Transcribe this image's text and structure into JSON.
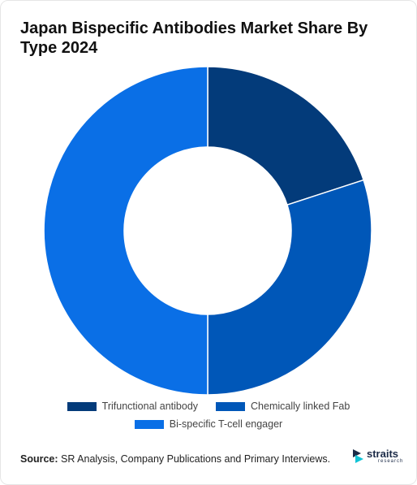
{
  "title": "Japan Bispecific Antibodies Market Share By Type 2024",
  "chart_data": {
    "type": "pie",
    "donut": true,
    "categories": [
      "Trifunctional antibody",
      "Chemically linked Fab",
      "Bi-specific T-cell engager"
    ],
    "values": [
      20,
      30,
      50
    ],
    "colors": [
      "#033b7a",
      "#0057b8",
      "#0a6fe6"
    ],
    "legend_position": "bottom"
  },
  "source": {
    "label": "Source:",
    "text": " SR Analysis, Company Publications and Primary Interviews."
  },
  "logo": {
    "name": "straits",
    "sub": "research",
    "icon": "straits-logo-icon"
  }
}
